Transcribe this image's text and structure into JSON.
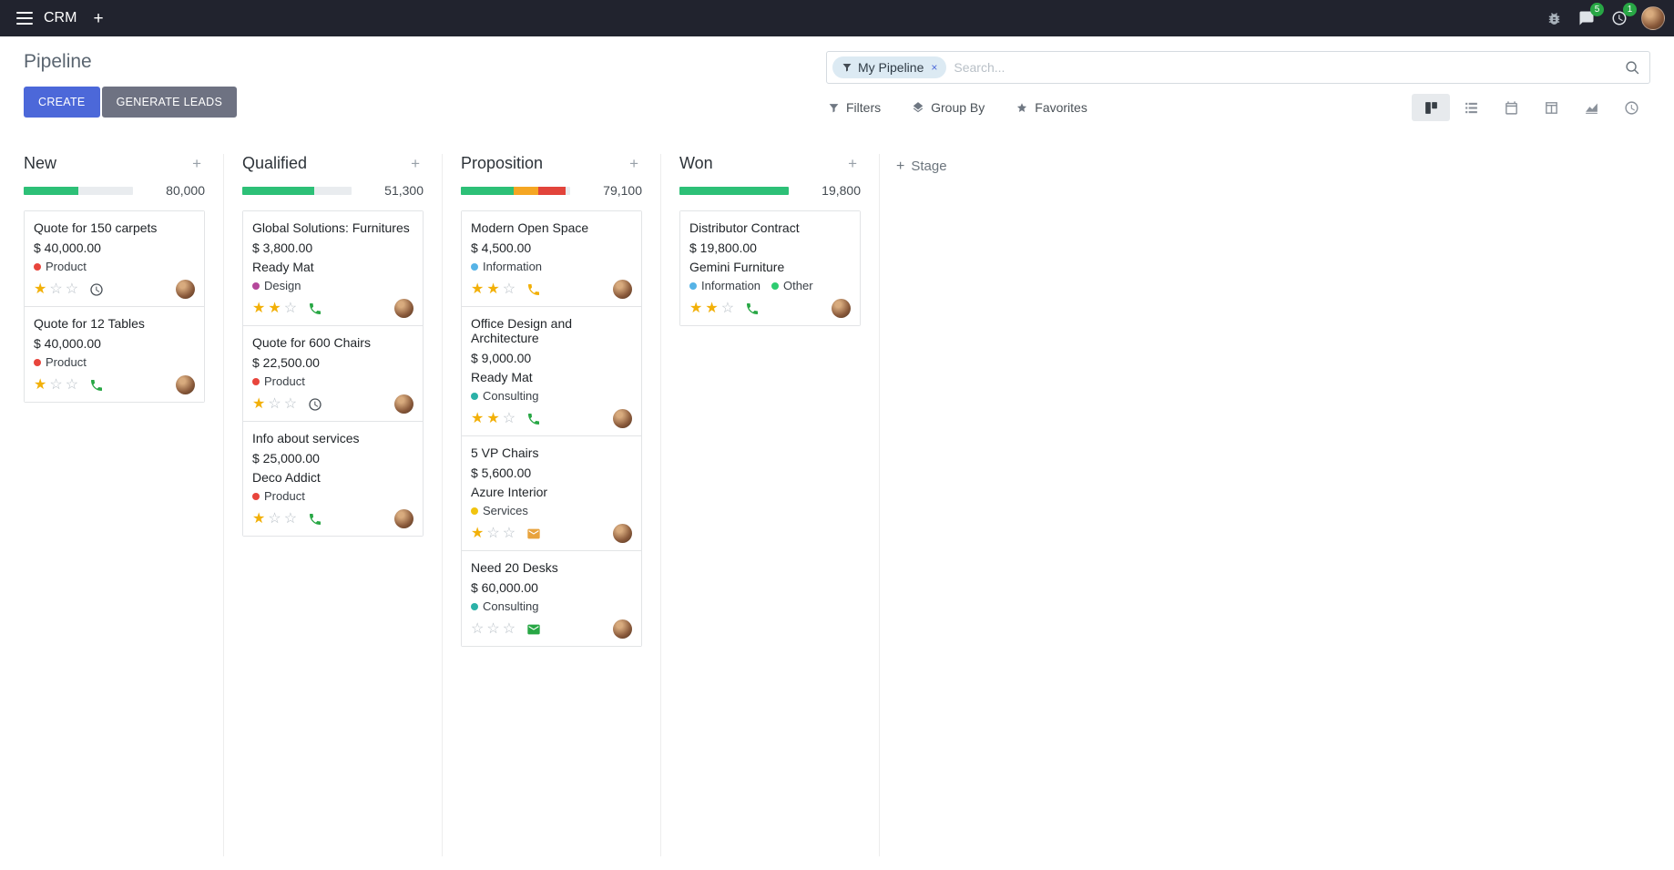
{
  "colors": {
    "topbar-bg": "#21232e",
    "primary": "#4c68d9",
    "secondary": "#6e7282",
    "badge-green": "#28a745",
    "success": "#28a745",
    "star-gold": "#f2b008",
    "progress-green": "#2dc077",
    "progress-yellow": "#f5a623",
    "progress-red": "#e2443b"
  },
  "icons": {
    "plus": "+"
  },
  "topbar": {
    "app_name": "CRM",
    "message_badge": "5",
    "activity_badge": "1"
  },
  "control_panel": {
    "title": "Pipeline",
    "create_label": "CREATE",
    "generate_label": "GENERATE LEADS",
    "filters_label": "Filters",
    "group_by_label": "Group By",
    "favorites_label": "Favorites",
    "search": {
      "facet": "My Pipeline",
      "remove_symbol": "×",
      "placeholder": "Search..."
    }
  },
  "view_switcher": {
    "active": "kanban",
    "views": [
      "kanban",
      "list",
      "calendar",
      "pivot",
      "graph",
      "activity"
    ]
  },
  "board": {
    "add_stage_label": "Stage",
    "columns": [
      {
        "name": "New",
        "total": "80,000",
        "progress": [
          {
            "color": "#2dc077",
            "pct": 50
          }
        ],
        "cards": [
          {
            "title": "Quote for 150 carpets",
            "amount": "$ 40,000.00",
            "tags": [
              {
                "label": "Product",
                "dot_style": "background:#e8453c"
              }
            ],
            "stars": 1,
            "activity": {
              "icon": "clock-icon",
              "color": "#495057"
            }
          },
          {
            "title": "Quote for 12 Tables",
            "amount": "$ 40,000.00",
            "tags": [
              {
                "label": "Product",
                "dot_style": "background:#e8453c"
              }
            ],
            "stars": 1,
            "activity": {
              "icon": "phone-icon",
              "color": "#28a745"
            }
          }
        ]
      },
      {
        "name": "Qualified",
        "total": "51,300",
        "progress": [
          {
            "color": "#2dc077",
            "pct": 66
          }
        ],
        "cards": [
          {
            "title": "Global Solutions: Furnitures",
            "amount": "$ 3,800.00",
            "company": "Ready Mat",
            "tags": [
              {
                "label": "Design",
                "dot_style": "background:#b5489b"
              }
            ],
            "stars": 2,
            "activity": {
              "icon": "phone-icon",
              "color": "#28a745"
            }
          },
          {
            "title": "Quote for 600 Chairs",
            "amount": "$ 22,500.00",
            "tags": [
              {
                "label": "Product",
                "dot_style": "background:#e8453c"
              }
            ],
            "stars": 1,
            "activity": {
              "icon": "clock-icon",
              "color": "#495057"
            }
          },
          {
            "title": "Info about services",
            "amount": "$ 25,000.00",
            "company": "Deco Addict",
            "tags": [
              {
                "label": "Product",
                "dot_style": "background:#e8453c"
              }
            ],
            "stars": 1,
            "activity": {
              "icon": "phone-icon",
              "color": "#28a745"
            }
          }
        ]
      },
      {
        "name": "Proposition",
        "total": "79,100",
        "progress": [
          {
            "color": "#2dc077",
            "pct": 48
          },
          {
            "color": "#f5a623",
            "pct": 23
          },
          {
            "color": "#e2443b",
            "pct": 25
          }
        ],
        "cards": [
          {
            "title": "Modern Open Space",
            "amount": "$ 4,500.00",
            "tags": [
              {
                "label": "Information",
                "dot_style": "background:#56b3e6"
              }
            ],
            "stars": 2,
            "activity": {
              "icon": "phone-icon",
              "color": "#f2b008"
            }
          },
          {
            "title": "Office Design and Architecture",
            "amount": "$ 9,000.00",
            "company": "Ready Mat",
            "tags": [
              {
                "label": "Consulting",
                "dot_style": "background:#2bb1a7"
              }
            ],
            "stars": 2,
            "activity": {
              "icon": "phone-icon",
              "color": "#28a745"
            }
          },
          {
            "title": "5 VP Chairs",
            "amount": "$ 5,600.00",
            "company": "Azure Interior",
            "tags": [
              {
                "label": "Services",
                "dot_style": "background:#f1c40f"
              }
            ],
            "stars": 1,
            "activity": {
              "icon": "mail-icon",
              "color": "#e8a33d"
            }
          },
          {
            "title": "Need 20 Desks",
            "amount": "$ 60,000.00",
            "tags": [
              {
                "label": "Consulting",
                "dot_style": "background:#2bb1a7"
              }
            ],
            "stars": 0,
            "activity": {
              "icon": "mail-icon",
              "color": "#28a745"
            }
          }
        ]
      },
      {
        "name": "Won",
        "total": "19,800",
        "progress": [
          {
            "color": "#2dc077",
            "pct": 100
          }
        ],
        "cards": [
          {
            "title": "Distributor Contract",
            "amount": "$ 19,800.00",
            "company": "Gemini Furniture",
            "tags": [
              {
                "label": "Information",
                "dot_style": "background:#56b3e6"
              },
              {
                "label": "Other",
                "dot_style": "background:#2ecc71"
              }
            ],
            "stars": 2,
            "activity": {
              "icon": "phone-icon",
              "color": "#28a745"
            }
          }
        ]
      }
    ]
  }
}
